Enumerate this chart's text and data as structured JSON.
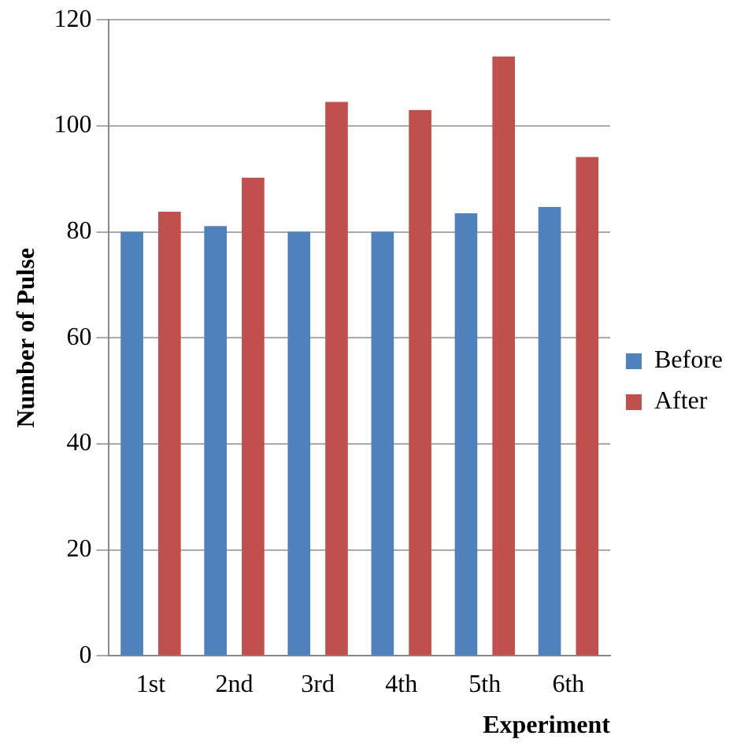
{
  "chart_data": {
    "type": "bar",
    "xlabel": "Experiment",
    "ylabel": "Number of Pulse",
    "categories": [
      "1st",
      "2nd",
      "3rd",
      "4th",
      "5th",
      "6th"
    ],
    "series": [
      {
        "name": "Before",
        "color": "#4f81bd",
        "values": [
          80,
          81.1,
          80,
          80,
          83.5,
          84.7
        ]
      },
      {
        "name": "After",
        "color": "#c0504d",
        "values": [
          83.8,
          90.2,
          104.5,
          103,
          113.1,
          94.1
        ]
      }
    ],
    "ylim": [
      0,
      120
    ],
    "yticks": [
      0,
      20,
      40,
      60,
      80,
      100,
      120
    ],
    "grid": "y",
    "legend": "right"
  }
}
